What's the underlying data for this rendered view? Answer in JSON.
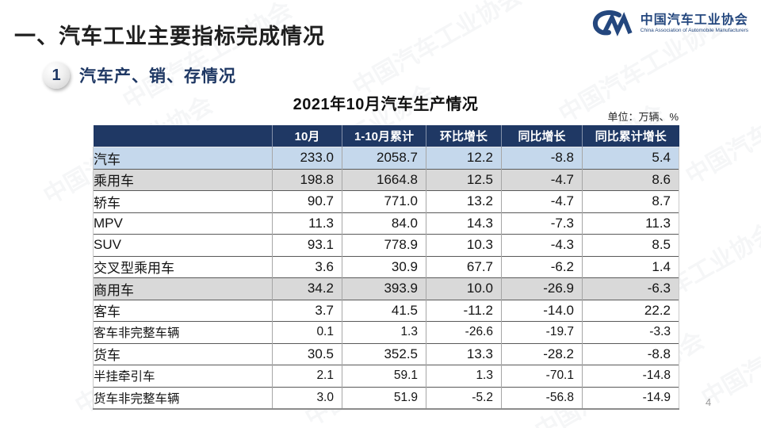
{
  "page": {
    "title": "一、汽车工业主要指标完成情况",
    "page_number": "4"
  },
  "logo": {
    "name_cn": "中国汽车工业协会",
    "name_en": "China Association of Automobile Manufacturers"
  },
  "section": {
    "number": "1",
    "title": "汽车产、销、存情况"
  },
  "watermark_text": "中国汽车工业协会",
  "table": {
    "title": "2021年10月汽车生产情况",
    "unit": "单位：万辆、%",
    "columns": [
      "",
      "10月",
      "1-10月累计",
      "环比增长",
      "同比增长",
      "同比累计增长"
    ],
    "rows": [
      {
        "label": "汽车",
        "indent": 0,
        "bg": "blue",
        "values": [
          "233.0",
          "2058.7",
          "12.2",
          "-8.8",
          "5.4"
        ]
      },
      {
        "label": "乘用车",
        "indent": 1,
        "bg": "gray",
        "values": [
          "198.8",
          "1664.8",
          "12.5",
          "-4.7",
          "8.6"
        ]
      },
      {
        "label": "轿车",
        "indent": 2,
        "bg": "white",
        "values": [
          "90.7",
          "771.0",
          "13.2",
          "-4.7",
          "8.7"
        ]
      },
      {
        "label": "MPV",
        "indent": 2,
        "bg": "white",
        "values": [
          "11.3",
          "84.0",
          "14.3",
          "-7.3",
          "11.3"
        ]
      },
      {
        "label": "SUV",
        "indent": 2,
        "bg": "white",
        "values": [
          "93.1",
          "778.9",
          "10.3",
          "-4.3",
          "8.5"
        ]
      },
      {
        "label": "交叉型乘用车",
        "indent": 2,
        "bg": "white",
        "values": [
          "3.6",
          "30.9",
          "67.7",
          "-6.2",
          "1.4"
        ]
      },
      {
        "label": "商用车",
        "indent": 1,
        "bg": "gray",
        "values": [
          "34.2",
          "393.9",
          "10.0",
          "-26.9",
          "-6.3"
        ]
      },
      {
        "label": "客车",
        "indent": 2,
        "bg": "white",
        "values": [
          "3.7",
          "41.5",
          "-11.2",
          "-14.0",
          "22.2"
        ]
      },
      {
        "label": "客车非完整车辆",
        "indent": 3,
        "bg": "white",
        "values": [
          "0.1",
          "1.3",
          "-26.6",
          "-19.7",
          "-3.3"
        ]
      },
      {
        "label": "货车",
        "indent": 2,
        "bg": "white",
        "values": [
          "30.5",
          "352.5",
          "13.3",
          "-28.2",
          "-8.8"
        ]
      },
      {
        "label": "半挂牵引车",
        "indent": 3,
        "bg": "white",
        "values": [
          "2.1",
          "59.1",
          "1.3",
          "-70.1",
          "-14.8"
        ]
      },
      {
        "label": "货车非完整车辆",
        "indent": 3,
        "bg": "white",
        "values": [
          "3.0",
          "51.9",
          "-5.2",
          "-56.8",
          "-14.9"
        ]
      }
    ]
  },
  "colors": {
    "header_bg": "#1F3864",
    "row_highlight_blue": "#C5D8EC",
    "row_highlight_gray": "#D9D9D9",
    "accent_navy": "#1F3864",
    "logo_blue": "#24477E"
  }
}
